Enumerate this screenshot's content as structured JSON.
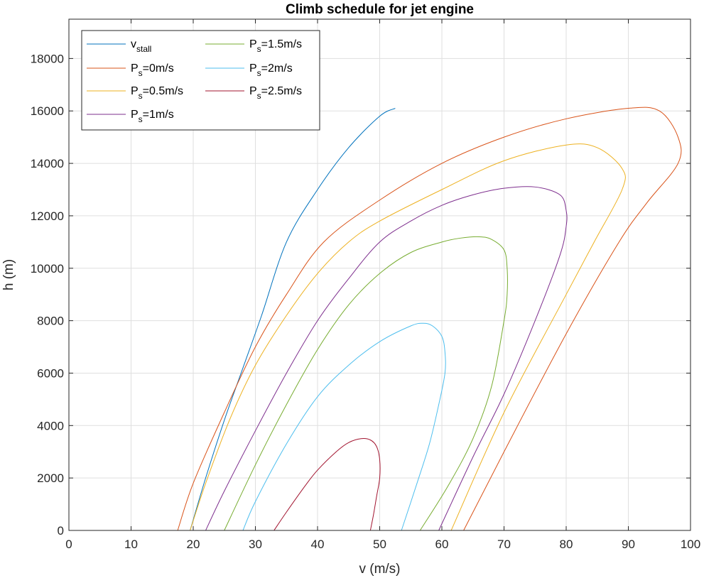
{
  "chart_data": {
    "type": "line",
    "title": "Climb schedule for jet engine",
    "xlabel": "v (m/s)",
    "ylabel": "h (m)",
    "xlim": [
      0,
      100
    ],
    "ylim": [
      0,
      19500
    ],
    "xticks": [
      0,
      10,
      20,
      30,
      40,
      50,
      60,
      70,
      80,
      90,
      100
    ],
    "yticks": [
      0,
      2000,
      4000,
      6000,
      8000,
      10000,
      12000,
      14000,
      16000,
      18000
    ],
    "grid": true,
    "legend_placement": "top-left",
    "series": [
      {
        "name": "v_stall",
        "label_main": "v",
        "label_sub": "stall",
        "label_suffix": "",
        "color": "#0072BD",
        "x": [
          19.5,
          22,
          25,
          28,
          31,
          35,
          40,
          45,
          50,
          52.5
        ],
        "y": [
          0,
          2000,
          4200,
          6200,
          8200,
          11000,
          13000,
          14600,
          15800,
          16100
        ]
      },
      {
        "name": "P_s=0m/s",
        "label_main": "P",
        "label_sub": "s",
        "label_suffix": "=0m/s",
        "color": "#D95319",
        "x": [
          17.5,
          20,
          25,
          30,
          35,
          41,
          50,
          60,
          70,
          80,
          90,
          95,
          98,
          98,
          93,
          88.5,
          80,
          70,
          63.5
        ],
        "y": [
          0,
          1800,
          4500,
          7000,
          9000,
          11000,
          12600,
          14000,
          15000,
          15700,
          16100,
          16000,
          15000,
          14000,
          12500,
          11000,
          7500,
          3000,
          0
        ]
      },
      {
        "name": "P_s=0.5m/s",
        "label_main": "P",
        "label_sub": "s",
        "label_suffix": "=0.5m/s",
        "color": "#EDB120",
        "x": [
          19.5,
          22,
          26,
          30,
          35,
          40,
          45,
          50,
          60,
          70,
          80,
          85,
          89,
          89,
          84.5,
          80,
          70,
          61.5
        ],
        "y": [
          0,
          1800,
          4300,
          6300,
          8200,
          9800,
          11000,
          11800,
          13000,
          14100,
          14700,
          14600,
          13800,
          13000,
          11000,
          9000,
          4500,
          0
        ]
      },
      {
        "name": "P_s=1m/s",
        "label_main": "P",
        "label_sub": "s",
        "label_suffix": "=1m/s",
        "color": "#7E2F8E",
        "x": [
          22,
          25,
          30,
          35,
          40,
          45,
          50,
          55,
          60,
          65,
          70,
          75,
          79,
          80,
          80,
          79,
          75,
          70,
          65,
          59.5
        ],
        "y": [
          0,
          1500,
          3800,
          6000,
          8000,
          9600,
          11000,
          11800,
          12400,
          12800,
          13050,
          13100,
          12800,
          12200,
          11600,
          10500,
          8000,
          5200,
          2800,
          0
        ]
      },
      {
        "name": "P_s=1.5m/s",
        "label_main": "P",
        "label_sub": "s",
        "label_suffix": "=1.5m/s",
        "color": "#77AC30",
        "x": [
          25,
          30,
          35,
          40,
          45,
          50,
          55,
          60,
          63,
          66,
          68,
          70,
          70.5,
          70.5,
          70,
          68,
          65,
          61,
          56.5
        ],
        "y": [
          0,
          2500,
          4800,
          6900,
          8600,
          9800,
          10600,
          11000,
          11150,
          11200,
          11100,
          10700,
          10000,
          9000,
          8000,
          5500,
          3500,
          1700,
          0
        ]
      },
      {
        "name": "P_s=2m/s",
        "label_main": "P",
        "label_sub": "s",
        "label_suffix": "=2m/s",
        "color": "#4DBEEE",
        "x": [
          28,
          30,
          35,
          40,
          45,
          50,
          55,
          57,
          58.5,
          60,
          60.5,
          60.5,
          59.5,
          58,
          56,
          53.5
        ],
        "y": [
          0,
          1100,
          3300,
          5100,
          6300,
          7200,
          7800,
          7900,
          7800,
          7400,
          6800,
          6000,
          4800,
          3300,
          1800,
          0
        ]
      },
      {
        "name": "P_s=2.5m/s",
        "label_main": "P",
        "label_sub": "s",
        "label_suffix": "=2.5m/s",
        "color": "#A2142F",
        "x": [
          33,
          35,
          38,
          40,
          43,
          45,
          47,
          48.5,
          49.5,
          50,
          50,
          49.5,
          49,
          48.5
        ],
        "y": [
          0,
          700,
          1700,
          2300,
          3000,
          3350,
          3500,
          3450,
          3200,
          2700,
          2000,
          1300,
          600,
          0
        ]
      }
    ]
  }
}
